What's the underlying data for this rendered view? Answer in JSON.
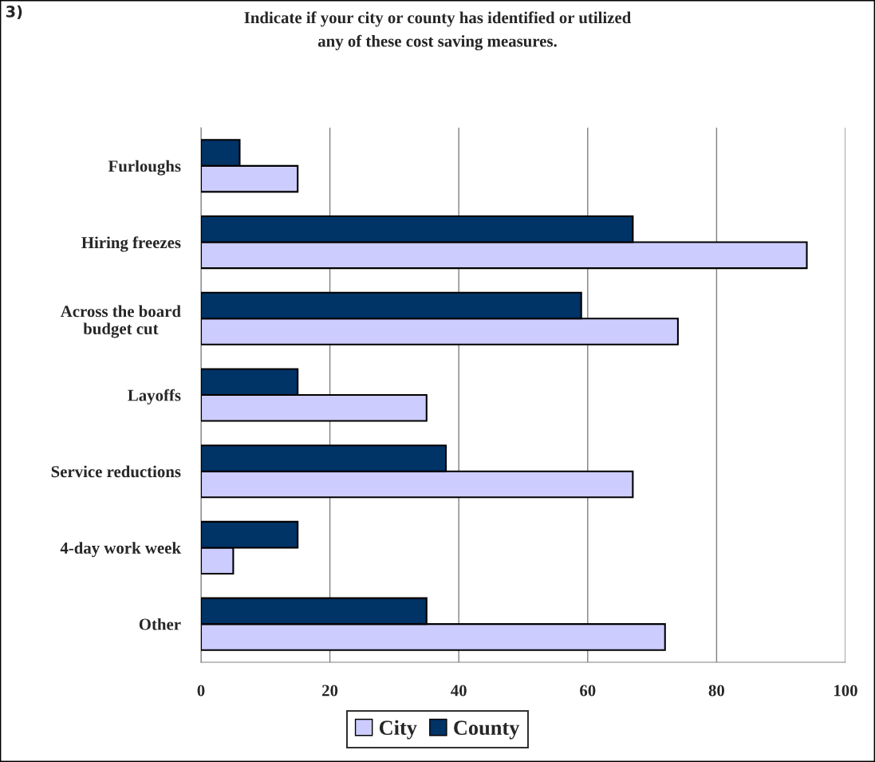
{
  "chart_data": {
    "type": "bar",
    "orientation": "horizontal",
    "title": "Indicate if your city or county has identified or utilized\nany of these cost saving measures.",
    "categories": [
      "Furloughs",
      "Hiring freezes",
      "Across the board\nbudget cut",
      "Layoffs",
      "Service reductions",
      "4-day work week",
      "Other"
    ],
    "series": [
      {
        "name": "City",
        "color": "#ccccff",
        "values": [
          15,
          94,
          74,
          35,
          67,
          5,
          72
        ]
      },
      {
        "name": "County",
        "color": "#003366",
        "values": [
          6,
          67,
          59,
          15,
          38,
          15,
          35
        ]
      }
    ],
    "xlim": [
      0,
      100
    ],
    "xticks": [
      0,
      20,
      40,
      60,
      80,
      100
    ],
    "grid": "x",
    "legend": "bottom",
    "annotations": [
      "3)"
    ]
  }
}
